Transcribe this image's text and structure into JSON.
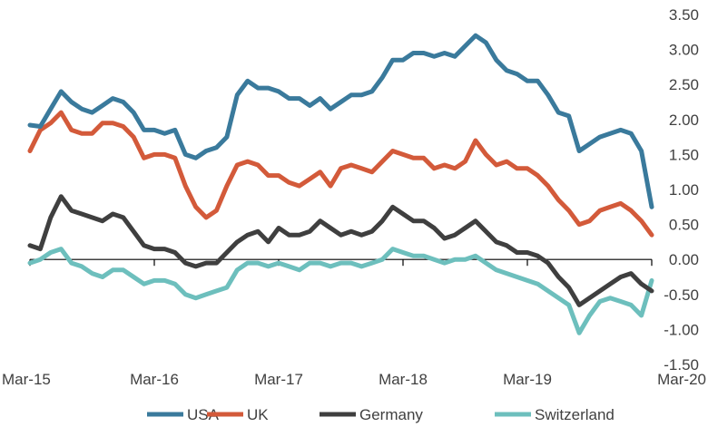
{
  "chart_data": {
    "type": "line",
    "title": "",
    "xlabel": "",
    "ylabel": "",
    "ylim": [
      -1.5,
      3.5
    ],
    "y_ticks": [
      "3.50",
      "3.00",
      "2.50",
      "2.00",
      "1.50",
      "1.00",
      "0.50",
      "0.00",
      "-0.50",
      "-1.00",
      "-1.50"
    ],
    "y_axis_side": "right",
    "x_ticks": [
      "Mar-15",
      "Mar-16",
      "Mar-17",
      "Mar-18",
      "Mar-19",
      "Mar-20"
    ],
    "grid": "horizontal",
    "legend_position": "bottom",
    "x": [
      "2015-03",
      "2015-04",
      "2015-05",
      "2015-06",
      "2015-07",
      "2015-08",
      "2015-09",
      "2015-10",
      "2015-11",
      "2015-12",
      "2016-01",
      "2016-02",
      "2016-03",
      "2016-04",
      "2016-05",
      "2016-06",
      "2016-07",
      "2016-08",
      "2016-09",
      "2016-10",
      "2016-11",
      "2016-12",
      "2017-01",
      "2017-02",
      "2017-03",
      "2017-04",
      "2017-05",
      "2017-06",
      "2017-07",
      "2017-08",
      "2017-09",
      "2017-10",
      "2017-11",
      "2017-12",
      "2018-01",
      "2018-02",
      "2018-03",
      "2018-04",
      "2018-05",
      "2018-06",
      "2018-07",
      "2018-08",
      "2018-09",
      "2018-10",
      "2018-11",
      "2018-12",
      "2019-01",
      "2019-02",
      "2019-03",
      "2019-04",
      "2019-05",
      "2019-06",
      "2019-07",
      "2019-08",
      "2019-09",
      "2019-10",
      "2019-11",
      "2019-12",
      "2020-01",
      "2020-02",
      "2020-03"
    ],
    "series": [
      {
        "name": "USA",
        "color": "#3a7a9c",
        "values": [
          1.92,
          1.9,
          2.15,
          2.4,
          2.25,
          2.15,
          2.1,
          2.2,
          2.3,
          2.25,
          2.1,
          1.85,
          1.85,
          1.8,
          1.85,
          1.5,
          1.45,
          1.55,
          1.6,
          1.75,
          2.35,
          2.55,
          2.45,
          2.45,
          2.4,
          2.3,
          2.3,
          2.2,
          2.3,
          2.15,
          2.25,
          2.35,
          2.35,
          2.4,
          2.6,
          2.85,
          2.85,
          2.95,
          2.95,
          2.9,
          2.95,
          2.9,
          3.05,
          3.2,
          3.1,
          2.85,
          2.7,
          2.65,
          2.55,
          2.55,
          2.35,
          2.1,
          2.05,
          1.55,
          1.65,
          1.75,
          1.8,
          1.85,
          1.8,
          1.55,
          0.75
        ]
      },
      {
        "name": "UK",
        "color": "#d35a3a",
        "values": [
          1.55,
          1.85,
          1.95,
          2.1,
          1.85,
          1.8,
          1.8,
          1.95,
          1.95,
          1.9,
          1.75,
          1.45,
          1.5,
          1.5,
          1.45,
          1.05,
          0.75,
          0.6,
          0.7,
          1.05,
          1.35,
          1.4,
          1.35,
          1.2,
          1.2,
          1.1,
          1.05,
          1.15,
          1.25,
          1.05,
          1.3,
          1.35,
          1.3,
          1.25,
          1.4,
          1.55,
          1.5,
          1.45,
          1.45,
          1.3,
          1.35,
          1.3,
          1.4,
          1.7,
          1.5,
          1.35,
          1.4,
          1.3,
          1.3,
          1.2,
          1.05,
          0.85,
          0.7,
          0.5,
          0.55,
          0.7,
          0.75,
          0.8,
          0.7,
          0.55,
          0.35
        ]
      },
      {
        "name": "Germany",
        "color": "#3f3f3f",
        "values": [
          0.2,
          0.15,
          0.6,
          0.9,
          0.7,
          0.65,
          0.6,
          0.55,
          0.65,
          0.6,
          0.4,
          0.2,
          0.15,
          0.15,
          0.1,
          -0.05,
          -0.1,
          -0.05,
          -0.05,
          0.1,
          0.25,
          0.35,
          0.4,
          0.25,
          0.45,
          0.35,
          0.35,
          0.4,
          0.55,
          0.45,
          0.35,
          0.4,
          0.35,
          0.4,
          0.55,
          0.75,
          0.65,
          0.55,
          0.55,
          0.45,
          0.3,
          0.35,
          0.45,
          0.55,
          0.4,
          0.25,
          0.2,
          0.1,
          0.1,
          0.05,
          -0.05,
          -0.25,
          -0.4,
          -0.65,
          -0.55,
          -0.45,
          -0.35,
          -0.25,
          -0.2,
          -0.35,
          -0.45
        ]
      },
      {
        "name": "Switzerland",
        "color": "#6dbfbd",
        "values": [
          -0.05,
          0.0,
          0.1,
          0.15,
          -0.05,
          -0.1,
          -0.2,
          -0.25,
          -0.15,
          -0.15,
          -0.25,
          -0.35,
          -0.3,
          -0.3,
          -0.35,
          -0.5,
          -0.55,
          -0.5,
          -0.45,
          -0.4,
          -0.15,
          -0.05,
          -0.05,
          -0.1,
          -0.05,
          -0.1,
          -0.15,
          -0.05,
          -0.05,
          -0.1,
          -0.05,
          -0.05,
          -0.1,
          -0.05,
          0.0,
          0.15,
          0.1,
          0.05,
          0.05,
          0.0,
          -0.05,
          0.0,
          0.0,
          0.05,
          -0.05,
          -0.15,
          -0.2,
          -0.25,
          -0.3,
          -0.35,
          -0.45,
          -0.55,
          -0.65,
          -1.05,
          -0.8,
          -0.6,
          -0.55,
          -0.6,
          -0.65,
          -0.8,
          -0.3
        ]
      }
    ]
  }
}
